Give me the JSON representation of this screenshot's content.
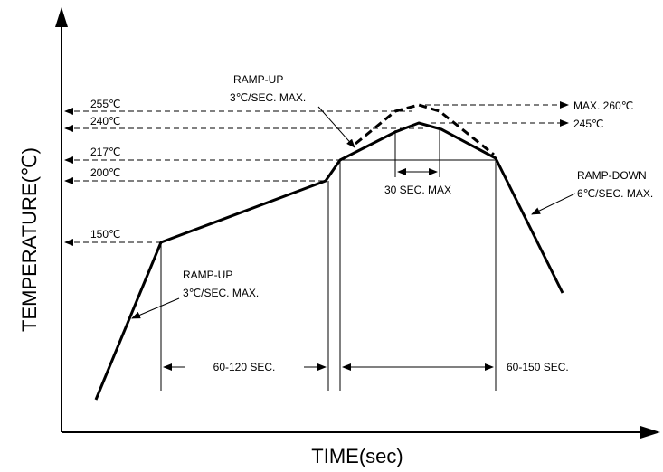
{
  "axes": {
    "y_title": "TEMPERATURE(℃)",
    "x_title": "TIME(sec)"
  },
  "temperatures": {
    "t255": "255℃",
    "t240": "240℃",
    "t217": "217℃",
    "t200": "200℃",
    "t150": "150℃"
  },
  "right_labels": {
    "max260": "MAX. 260℃",
    "t245": "245℃"
  },
  "annotations": {
    "ramp_up_top_1": "RAMP-UP",
    "ramp_up_top_2": "3℃/SEC. MAX.",
    "ramp_up_bottom_1": "RAMP-UP",
    "ramp_up_bottom_2": "3℃/SEC. MAX.",
    "ramp_down_1": "RAMP-DOWN",
    "ramp_down_2": "6℃/SEC. MAX.",
    "peak_window": "30 SEC. MAX",
    "soak_window": "60-120 SEC.",
    "liquidus_window": "60-150 SEC."
  }
}
